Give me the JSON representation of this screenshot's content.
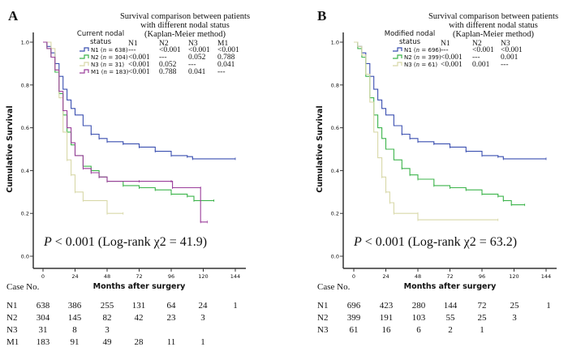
{
  "chart_data": [
    {
      "panel": "A",
      "type": "line",
      "subtype": "kaplan-meier",
      "title": "Survival comparison between patients with different nodal status (Kaplan-Meier method)",
      "title_lines": [
        "Survival comparison between patients",
        "with different nodal status",
        "(Kaplan-Meier method)"
      ],
      "legend_title_lines": [
        "Current nodal",
        "status"
      ],
      "xlabel": "Months after surgery",
      "ylabel": "Cumulative Survival",
      "xlim": [
        0,
        144
      ],
      "ylim": [
        0,
        1.0
      ],
      "xticks": [
        "0",
        "24",
        "48",
        "72",
        "96",
        "120",
        "144"
      ],
      "yticks": [
        "0.0",
        "0.2",
        "0.4",
        "0.6",
        "0.8",
        "1.0"
      ],
      "annotation": {
        "p": "P",
        "rest": " < 0.001 (Log-rank χ2 = 41.9)"
      },
      "pairwise_header": [
        "N1",
        "N2",
        "N3",
        "M1"
      ],
      "series": [
        {
          "name": "N1",
          "n": "638",
          "color": "#3a4fb0",
          "pvalues": [
            "---",
            "<0.001",
            "<0.001",
            "<0.001"
          ],
          "points": [
            [
              0,
              1.0
            ],
            [
              3,
              0.98
            ],
            [
              6,
              0.95
            ],
            [
              9,
              0.9
            ],
            [
              12,
              0.84
            ],
            [
              15,
              0.78
            ],
            [
              18,
              0.73
            ],
            [
              21,
              0.69
            ],
            [
              24,
              0.66
            ],
            [
              30,
              0.61
            ],
            [
              36,
              0.57
            ],
            [
              42,
              0.55
            ],
            [
              48,
              0.535
            ],
            [
              60,
              0.525
            ],
            [
              72,
              0.51
            ],
            [
              84,
              0.49
            ],
            [
              96,
              0.47
            ],
            [
              108,
              0.465
            ],
            [
              112,
              0.455
            ],
            [
              144,
              0.455
            ]
          ]
        },
        {
          "name": "N2",
          "n": "304",
          "color": "#3cb44b",
          "pvalues": [
            "<0.001",
            "---",
            "0.052",
            "0.788"
          ],
          "points": [
            [
              0,
              1.0
            ],
            [
              3,
              0.97
            ],
            [
              6,
              0.93
            ],
            [
              9,
              0.86
            ],
            [
              12,
              0.76
            ],
            [
              15,
              0.66
            ],
            [
              18,
              0.58
            ],
            [
              21,
              0.52
            ],
            [
              24,
              0.47
            ],
            [
              30,
              0.42
            ],
            [
              36,
              0.4
            ],
            [
              42,
              0.37
            ],
            [
              48,
              0.35
            ],
            [
              60,
              0.33
            ],
            [
              72,
              0.32
            ],
            [
              84,
              0.31
            ],
            [
              96,
              0.29
            ],
            [
              108,
              0.28
            ],
            [
              113,
              0.26
            ],
            [
              128,
              0.26
            ]
          ]
        },
        {
          "name": "N3",
          "n": "31",
          "color": "#d8d8a8",
          "pvalues": [
            "<0.001",
            "0.052",
            "---",
            "0.041"
          ],
          "points": [
            [
              0,
              1.0
            ],
            [
              3,
              1.0
            ],
            [
              6,
              0.97
            ],
            [
              9,
              0.87
            ],
            [
              12,
              0.74
            ],
            [
              15,
              0.58
            ],
            [
              18,
              0.45
            ],
            [
              21,
              0.38
            ],
            [
              24,
              0.3
            ],
            [
              30,
              0.26
            ],
            [
              48,
              0.2
            ],
            [
              60,
              0.2
            ]
          ]
        },
        {
          "name": "M1",
          "n": "183",
          "color": "#9b3f9b",
          "pvalues": [
            "<0.001",
            "0.788",
            "0.041",
            "---"
          ],
          "points": [
            [
              0,
              1.0
            ],
            [
              3,
              0.97
            ],
            [
              6,
              0.93
            ],
            [
              9,
              0.87
            ],
            [
              12,
              0.77
            ],
            [
              15,
              0.68
            ],
            [
              18,
              0.6
            ],
            [
              21,
              0.53
            ],
            [
              24,
              0.47
            ],
            [
              30,
              0.41
            ],
            [
              36,
              0.39
            ],
            [
              42,
              0.37
            ],
            [
              48,
              0.35
            ],
            [
              72,
              0.35
            ],
            [
              96,
              0.35
            ],
            [
              97,
              0.32
            ],
            [
              118,
              0.32
            ],
            [
              118,
              0.16
            ],
            [
              123,
              0.16
            ]
          ]
        }
      ],
      "risk_table": {
        "label": "Case No.",
        "times": [
          0,
          24,
          48,
          72,
          96,
          120,
          144
        ],
        "rows": [
          {
            "group": "N1",
            "values": [
              "638",
              "386",
              "255",
              "131",
              "64",
              "24",
              "1"
            ]
          },
          {
            "group": "N2",
            "values": [
              "304",
              "145",
              "82",
              "42",
              "23",
              "3",
              ""
            ]
          },
          {
            "group": "N3",
            "values": [
              "31",
              "8",
              "3",
              "",
              "",
              "",
              ""
            ]
          },
          {
            "group": "M1",
            "values": [
              "183",
              "91",
              "49",
              "28",
              "11",
              "1",
              ""
            ]
          }
        ]
      }
    },
    {
      "panel": "B",
      "type": "line",
      "subtype": "kaplan-meier",
      "title": "Survival comparison between patients with different nodal status (Kaplan-Meier method)",
      "title_lines": [
        "Survival comparison between patients",
        "with different nodal status",
        "(Kaplan-Meier method)"
      ],
      "legend_title_lines": [
        "Modified nodal",
        "status"
      ],
      "xlabel": "Months after surgery",
      "ylabel": "Cumulative Survival",
      "xlim": [
        0,
        144
      ],
      "ylim": [
        0,
        1.0
      ],
      "xticks": [
        "0",
        "24",
        "48",
        "72",
        "96",
        "120",
        "144"
      ],
      "yticks": [
        "0.0",
        "0.2",
        "0.4",
        "0.6",
        "0.8",
        "1.0"
      ],
      "annotation": {
        "p": "P",
        "rest": " < 0.001 (Log-rank χ2 = 63.2)"
      },
      "pairwise_header": [
        "N1",
        "N2",
        "N3"
      ],
      "series": [
        {
          "name": "N1",
          "n": "696",
          "color": "#3a4fb0",
          "pvalues": [
            "---",
            "<0.001",
            "<0.001"
          ],
          "points": [
            [
              0,
              1.0
            ],
            [
              3,
              0.98
            ],
            [
              6,
              0.95
            ],
            [
              9,
              0.9
            ],
            [
              12,
              0.84
            ],
            [
              15,
              0.78
            ],
            [
              18,
              0.73
            ],
            [
              21,
              0.69
            ],
            [
              24,
              0.66
            ],
            [
              30,
              0.61
            ],
            [
              36,
              0.57
            ],
            [
              42,
              0.55
            ],
            [
              48,
              0.535
            ],
            [
              60,
              0.525
            ],
            [
              72,
              0.51
            ],
            [
              84,
              0.49
            ],
            [
              96,
              0.47
            ],
            [
              108,
              0.465
            ],
            [
              112,
              0.455
            ],
            [
              144,
              0.455
            ]
          ]
        },
        {
          "name": "N2",
          "n": "399",
          "color": "#3cb44b",
          "pvalues": [
            "<0.001",
            "---",
            "0.001"
          ],
          "points": [
            [
              0,
              1.0
            ],
            [
              3,
              0.97
            ],
            [
              6,
              0.93
            ],
            [
              9,
              0.84
            ],
            [
              12,
              0.74
            ],
            [
              15,
              0.66
            ],
            [
              18,
              0.6
            ],
            [
              21,
              0.55
            ],
            [
              24,
              0.5
            ],
            [
              30,
              0.45
            ],
            [
              36,
              0.41
            ],
            [
              42,
              0.38
            ],
            [
              48,
              0.36
            ],
            [
              60,
              0.33
            ],
            [
              72,
              0.32
            ],
            [
              84,
              0.31
            ],
            [
              96,
              0.29
            ],
            [
              108,
              0.28
            ],
            [
              112,
              0.26
            ],
            [
              118,
              0.24
            ],
            [
              128,
              0.24
            ]
          ]
        },
        {
          "name": "N3",
          "n": "61",
          "color": "#d8d8a8",
          "pvalues": [
            "<0.001",
            "0.001",
            "---"
          ],
          "points": [
            [
              0,
              1.0
            ],
            [
              3,
              0.98
            ],
            [
              6,
              0.94
            ],
            [
              9,
              0.85
            ],
            [
              12,
              0.72
            ],
            [
              15,
              0.58
            ],
            [
              18,
              0.46
            ],
            [
              21,
              0.37
            ],
            [
              24,
              0.3
            ],
            [
              27,
              0.25
            ],
            [
              30,
              0.2
            ],
            [
              48,
              0.2
            ],
            [
              48,
              0.17
            ],
            [
              108,
              0.17
            ]
          ]
        }
      ],
      "risk_table": {
        "label": "Case No.",
        "times": [
          0,
          24,
          48,
          72,
          96,
          120,
          144
        ],
        "rows": [
          {
            "group": "N1",
            "values": [
              "696",
              "423",
              "280",
              "144",
              "72",
              "25",
              "1"
            ]
          },
          {
            "group": "N2",
            "values": [
              "399",
              "191",
              "103",
              "55",
              "25",
              "3",
              ""
            ]
          },
          {
            "group": "N3",
            "values": [
              "61",
              "16",
              "6",
              "2",
              "1",
              "",
              ""
            ]
          }
        ]
      }
    }
  ]
}
